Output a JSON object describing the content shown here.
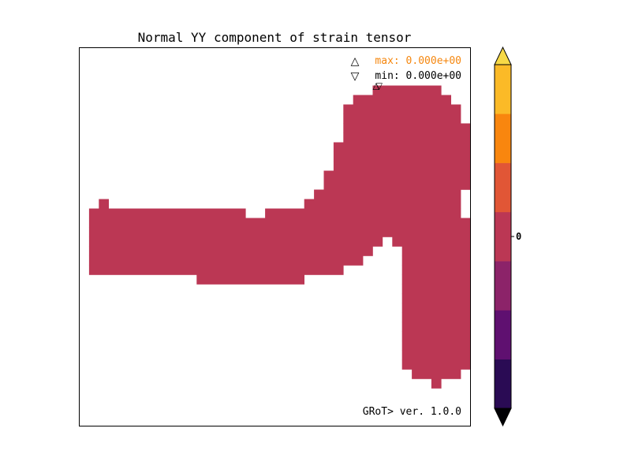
{
  "chart_data": {
    "type": "heatmap",
    "title": "Normal YY component of strain tensor",
    "xlabel": "",
    "ylabel": "",
    "grid": false,
    "legend": {
      "max_label": "max: 0.000e+00",
      "min_label": "min: 0.000e+00",
      "max_symbol": "△",
      "min_symbol": "▽",
      "placement": "top-right"
    },
    "max_marker": {
      "col": 30,
      "row": 4,
      "symbol": "△"
    },
    "min_marker": {
      "col": 30,
      "row": 4,
      "symbol": "▽"
    },
    "version_text": "GRoT> ver. 1.0.0",
    "field": {
      "fill_color": "#bb3754",
      "value": 0,
      "cols": 40,
      "rows": 40,
      "row_spans": [
        [
          4,
          [
            [
              30,
              37
            ]
          ]
        ],
        [
          5,
          [
            [
              28,
              38
            ]
          ]
        ],
        [
          6,
          [
            [
              27,
              39
            ]
          ]
        ],
        [
          7,
          [
            [
              27,
              39
            ]
          ]
        ],
        [
          8,
          [
            [
              27,
              40
            ]
          ]
        ],
        [
          9,
          [
            [
              27,
              40
            ]
          ]
        ],
        [
          10,
          [
            [
              26,
              40
            ]
          ]
        ],
        [
          11,
          [
            [
              26,
              40
            ]
          ]
        ],
        [
          12,
          [
            [
              26,
              40
            ]
          ]
        ],
        [
          13,
          [
            [
              25,
              40
            ]
          ]
        ],
        [
          14,
          [
            [
              25,
              40
            ]
          ]
        ],
        [
          15,
          [
            [
              24,
              39
            ]
          ]
        ],
        [
          16,
          [
            [
              2,
              3
            ],
            [
              23,
              39
            ]
          ]
        ],
        [
          17,
          [
            [
              1,
              17
            ],
            [
              19,
              39
            ]
          ]
        ],
        [
          18,
          [
            [
              1,
              40
            ]
          ]
        ],
        [
          19,
          [
            [
              1,
              40
            ]
          ]
        ],
        [
          20,
          [
            [
              1,
              31
            ],
            [
              32,
              40
            ]
          ]
        ],
        [
          21,
          [
            [
              1,
              30
            ],
            [
              33,
              40
            ]
          ]
        ],
        [
          22,
          [
            [
              1,
              29
            ],
            [
              33,
              40
            ]
          ]
        ],
        [
          23,
          [
            [
              1,
              27
            ],
            [
              33,
              40
            ]
          ]
        ],
        [
          24,
          [
            [
              12,
              23
            ],
            [
              33,
              40
            ]
          ]
        ],
        [
          25,
          [
            [
              33,
              40
            ]
          ]
        ],
        [
          26,
          [
            [
              33,
              40
            ]
          ]
        ],
        [
          27,
          [
            [
              33,
              40
            ]
          ]
        ],
        [
          28,
          [
            [
              33,
              40
            ]
          ]
        ],
        [
          29,
          [
            [
              33,
              40
            ]
          ]
        ],
        [
          30,
          [
            [
              33,
              40
            ]
          ]
        ],
        [
          31,
          [
            [
              33,
              40
            ]
          ]
        ],
        [
          32,
          [
            [
              33,
              40
            ]
          ]
        ],
        [
          33,
          [
            [
              33,
              40
            ]
          ]
        ],
        [
          34,
          [
            [
              34,
              39
            ]
          ]
        ],
        [
          35,
          [
            [
              36,
              37
            ]
          ]
        ]
      ]
    },
    "colorbar": {
      "colors": [
        "#2a0b54",
        "#5f1070",
        "#8c2369",
        "#bb3754",
        "#e15636",
        "#f9860e",
        "#fbba27"
      ],
      "extend_max_color": "#f7d946",
      "extend_min_color": "#000004",
      "tick_labels": [
        "0"
      ],
      "tick_positions": [
        3.5
      ]
    }
  }
}
